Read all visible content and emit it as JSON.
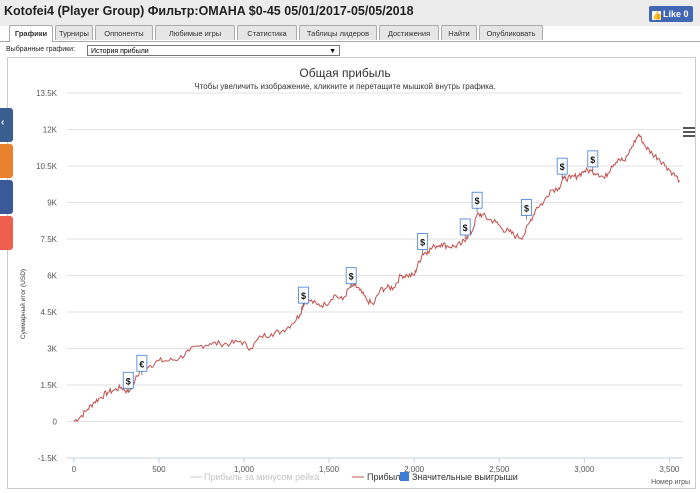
{
  "window": {
    "title": "Kotofei4 (Player Group) Фильтр:OMAHA $0-45 05/01/2017-05/05/2018",
    "like_label": "Like 0"
  },
  "tabs": [
    {
      "label": "Графики",
      "active": true
    },
    {
      "label": "Турниры"
    },
    {
      "label": "Оппоненты"
    },
    {
      "label": "Любимые игры"
    },
    {
      "label": "Статистика"
    },
    {
      "label": "Таблицы лидеров"
    },
    {
      "label": "Достижения"
    },
    {
      "label": "Найти"
    },
    {
      "label": "Опубликовать"
    }
  ],
  "selector": {
    "label": "Выбранные графики:",
    "value": "История прибыли"
  },
  "colors": {
    "line": "#c0504d",
    "big_wins": "#3b7dd8",
    "disabled_series": "#cccccc"
  },
  "chart_data": {
    "type": "line",
    "title": "Общая прибыль",
    "subtitle": "Чтобы увеличить изображение, кликните и перетащите мышкой внутрь графика.",
    "ylabel": "Суммарный итог (USD)",
    "xlabel": "Номер игры",
    "x_ticks": [
      "0",
      "500",
      "1,000",
      "1,500",
      "2,000",
      "2,500",
      "3,000",
      "3,500"
    ],
    "y_ticks": [
      "-1.5K",
      "0",
      "1.5K",
      "3K",
      "4.5K",
      "6K",
      "7.5K",
      "9K",
      "10.5K",
      "12K",
      "13.5K"
    ],
    "xlim": [
      -40,
      3580
    ],
    "ylim": [
      -1500,
      13500
    ],
    "grid": "horizontal",
    "legend_placement": "bottom",
    "series": [
      {
        "name": "Прибыль за минусом рейка",
        "visible": false
      },
      {
        "name": "Прибыль",
        "x": [
          0,
          40,
          80,
          120,
          160,
          200,
          240,
          280,
          320,
          360,
          400,
          450,
          500,
          560,
          620,
          680,
          740,
          800,
          860,
          920,
          980,
          1040,
          1100,
          1160,
          1220,
          1280,
          1330,
          1350,
          1380,
          1430,
          1480,
          1530,
          1580,
          1620,
          1650,
          1680,
          1720,
          1760,
          1800,
          1840,
          1880,
          1920,
          1960,
          2000,
          2020,
          2050,
          2080,
          2120,
          2160,
          2200,
          2240,
          2280,
          2310,
          2340,
          2370,
          2400,
          2440,
          2480,
          2520,
          2560,
          2600,
          2640,
          2680,
          2720,
          2760,
          2800,
          2850,
          2880,
          2920,
          2960,
          3000,
          3040,
          3080,
          3120,
          3160,
          3200,
          3240,
          3280,
          3320,
          3360,
          3400,
          3440,
          3480,
          3520,
          3560
        ],
        "y": [
          0,
          200,
          500,
          800,
          1000,
          1200,
          1300,
          1400,
          1200,
          1700,
          2200,
          2300,
          2500,
          2500,
          2600,
          2900,
          3100,
          3200,
          3200,
          3200,
          3300,
          3000,
          3500,
          3600,
          3700,
          4000,
          4400,
          4900,
          5000,
          4800,
          4800,
          5200,
          5000,
          5500,
          5600,
          5400,
          5000,
          4800,
          5400,
          5500,
          5500,
          6000,
          6000,
          6000,
          6400,
          6900,
          7000,
          7200,
          7300,
          7200,
          7200,
          7300,
          7600,
          7800,
          8500,
          8500,
          8300,
          8200,
          7900,
          7800,
          7600,
          7600,
          8200,
          8800,
          9000,
          9500,
          9600,
          10000,
          10000,
          10100,
          10300,
          10300,
          10200,
          10000,
          10500,
          10800,
          10700,
          11300,
          11800,
          11300,
          11000,
          10800,
          10500,
          10200,
          9900
        ]
      }
    ],
    "big_wins": [
      {
        "x": 320,
        "y": 1200,
        "symbol": "$"
      },
      {
        "x": 400,
        "y": 1900,
        "symbol": "€"
      },
      {
        "x": 1350,
        "y": 4700,
        "symbol": "$"
      },
      {
        "x": 1630,
        "y": 5500,
        "symbol": "$"
      },
      {
        "x": 2050,
        "y": 6900,
        "symbol": "$"
      },
      {
        "x": 2300,
        "y": 7500,
        "symbol": "$"
      },
      {
        "x": 2370,
        "y": 8600,
        "symbol": "$"
      },
      {
        "x": 2660,
        "y": 8300,
        "symbol": "$"
      },
      {
        "x": 2870,
        "y": 10000,
        "symbol": "$"
      },
      {
        "x": 3050,
        "y": 10300,
        "symbol": "$"
      }
    ],
    "legend": [
      {
        "label": "Прибыль за минусом рейка",
        "kind": "line",
        "disabled": true
      },
      {
        "label": "Прибыль",
        "kind": "line"
      },
      {
        "label": "Значительные выигрыши",
        "kind": "box"
      }
    ]
  }
}
